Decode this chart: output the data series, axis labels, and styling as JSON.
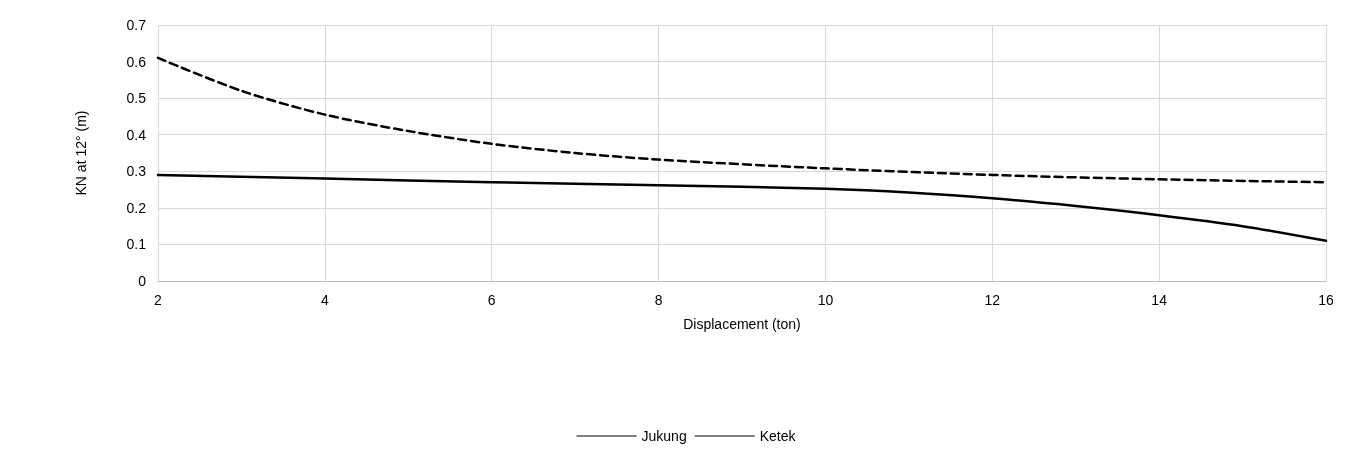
{
  "chart_data": {
    "type": "line",
    "xlabel": "Displacement (ton)",
    "ylabel": "KN at 12° (m)",
    "xlim": [
      2,
      16
    ],
    "xticks": [
      2,
      4,
      6,
      8,
      10,
      12,
      14,
      16
    ],
    "ylim": [
      0,
      0.7
    ],
    "yticks": [
      0,
      0.1,
      0.2,
      0.3,
      0.4,
      0.5,
      0.6,
      0.7
    ],
    "grid": true,
    "legend": "bottom",
    "marker": "none",
    "series": [
      {
        "name": "Jukung",
        "color": "#000000",
        "line_style": "solid",
        "x": [
          2,
          4,
          6,
          8,
          10,
          11,
          12,
          13,
          14,
          15,
          16
        ],
        "values": [
          0.29,
          0.28,
          0.27,
          0.262,
          0.252,
          0.242,
          0.226,
          0.205,
          0.18,
          0.15,
          0.11
        ]
      },
      {
        "name": "Ketek",
        "color": "#000000",
        "line_style": "dashed",
        "x": [
          2,
          3,
          4,
          5,
          6,
          7,
          8,
          10,
          12,
          14,
          16
        ],
        "values": [
          0.61,
          0.52,
          0.455,
          0.41,
          0.375,
          0.35,
          0.332,
          0.308,
          0.29,
          0.278,
          0.27
        ]
      }
    ]
  }
}
